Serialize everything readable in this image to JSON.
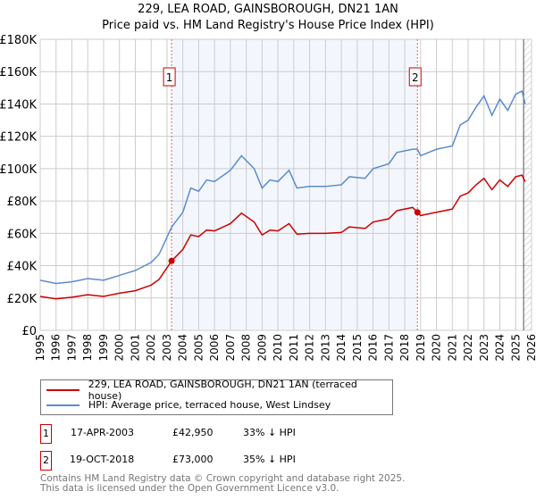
{
  "chart_data": {
    "type": "line",
    "title": "229, LEA ROAD, GAINSBOROUGH, DN21 1AN",
    "subtitle": "Price paid vs. HM Land Registry's House Price Index (HPI)",
    "xlim": [
      1995,
      2026
    ],
    "ylim": [
      0,
      180000
    ],
    "yticks": [
      "£0",
      "£20K",
      "£40K",
      "£60K",
      "£80K",
      "£100K",
      "£120K",
      "£140K",
      "£160K",
      "£180K"
    ],
    "xticks": [
      "1995",
      "1996",
      "1997",
      "1998",
      "1999",
      "2000",
      "2001",
      "2002",
      "2003",
      "2004",
      "2005",
      "2006",
      "2007",
      "2008",
      "2009",
      "2010",
      "2011",
      "2012",
      "2013",
      "2014",
      "2015",
      "2016",
      "2017",
      "2018",
      "2019",
      "2020",
      "2021",
      "2022",
      "2023",
      "2024",
      "2025",
      "2026"
    ],
    "x": [
      1995,
      1996,
      1997,
      1998,
      1999,
      2000,
      2001,
      2002,
      2002.5,
      2003.3,
      2004,
      2004.5,
      2005,
      2005.5,
      2006,
      2007,
      2007.7,
      2008.5,
      2009,
      2009.5,
      2010,
      2010.7,
      2011.2,
      2012,
      2013,
      2014,
      2014.5,
      2015.5,
      2016,
      2017,
      2017.5,
      2018.5,
      2018.8,
      2019,
      2020,
      2021,
      2021.5,
      2022,
      2022.5,
      2023,
      2023.5,
      2024,
      2024.5,
      2025,
      2025.4,
      2025.6
    ],
    "series": [
      {
        "name": "229, LEA ROAD, GAINSBOROUGH, DN21 1AN (terraced house)",
        "color": "#cc0000",
        "values": [
          21,
          19.5,
          20.5,
          22,
          21,
          23,
          24.5,
          28,
          31.5,
          43,
          50,
          59,
          58,
          62,
          61.5,
          66,
          72.5,
          67,
          59,
          62,
          61.5,
          66,
          59.5,
          60,
          60,
          60.5,
          64,
          63,
          67,
          69,
          74,
          76,
          73,
          71,
          73,
          75,
          83,
          85,
          90,
          94,
          87,
          93,
          89,
          95,
          96,
          92
        ]
      },
      {
        "name": "HPI: Average price, terraced house, West Lindsey",
        "color": "#5b8bd0",
        "values": [
          31,
          29,
          30,
          32,
          31,
          34,
          37,
          42,
          47,
          64,
          73,
          88,
          86,
          93,
          92,
          99,
          108,
          100,
          88,
          93,
          92,
          99,
          88,
          89,
          89,
          90,
          95,
          94,
          100,
          103,
          110,
          112,
          112,
          108,
          112,
          114,
          127,
          130,
          138,
          145,
          133,
          143,
          136,
          146,
          148,
          140
        ]
      }
    ],
    "value_unit": "thousands GBP",
    "sales": [
      {
        "label": "1",
        "x": 2003.29,
        "date": "17-APR-2003",
        "price": "£42,950",
        "price_value": 42.95,
        "hpi": "33% ↓ HPI"
      },
      {
        "label": "2",
        "x": 2018.8,
        "date": "19-OCT-2018",
        "price": "£73,000",
        "price_value": 73,
        "hpi": "35% ↓ HPI"
      }
    ],
    "forecast_from": 2025.5,
    "legend_position": "below"
  },
  "footer": {
    "line1": "Contains HM Land Registry data © Crown copyright and database right 2025.",
    "line2": "This data is licensed under the Open Government Licence v3.0."
  }
}
